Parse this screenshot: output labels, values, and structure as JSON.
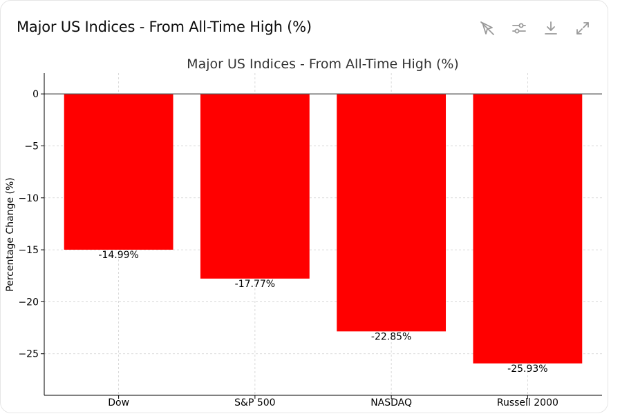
{
  "header": {
    "title": "Major US Indices - From All-Time High (%)"
  },
  "toolbar": {
    "icons": [
      "interactive-chart-icon",
      "chart-settings-icon",
      "download-icon",
      "expand-icon"
    ]
  },
  "colors": {
    "bar": "#ff0000",
    "grid": "#d0d0d0",
    "axis": "#000000",
    "text": "#000000",
    "title": "#333333"
  },
  "chart_data": {
    "type": "bar",
    "title": "Major US Indices - From All-Time High (%)",
    "xlabel": "",
    "ylabel": "Percentage Change (%)",
    "categories": [
      "Dow",
      "S&P 500",
      "NASDAQ",
      "Russell 2000"
    ],
    "values": [
      -14.99,
      -17.77,
      -22.85,
      -25.93
    ],
    "data_labels": [
      "-14.99%",
      "-17.77%",
      "-22.85%",
      "-25.93%"
    ],
    "yticks": [
      0,
      -5,
      -10,
      -15,
      -20,
      -25
    ],
    "ytick_labels": [
      "0",
      "−5",
      "−10",
      "−15",
      "−20",
      "−25"
    ],
    "ylim": [
      -29,
      2
    ],
    "grid": true
  }
}
